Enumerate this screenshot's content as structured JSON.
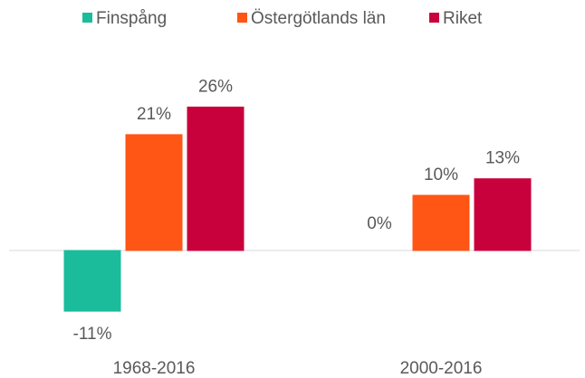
{
  "chart_data": {
    "type": "bar",
    "categories": [
      "1968-2016",
      "2000-2016"
    ],
    "series": [
      {
        "name": "Finspång",
        "color": "#1abc9c",
        "values": [
          -11,
          0
        ],
        "value_labels": [
          "-11%",
          "0%"
        ]
      },
      {
        "name": "Östergötlands län",
        "color": "#ff5515",
        "values": [
          21,
          10
        ],
        "value_labels": [
          "21%",
          "10%"
        ]
      },
      {
        "name": "Riket",
        "color": "#c8003c",
        "values": [
          26,
          13
        ],
        "value_labels": [
          "26%",
          "13%"
        ]
      }
    ],
    "legend": "top"
  }
}
